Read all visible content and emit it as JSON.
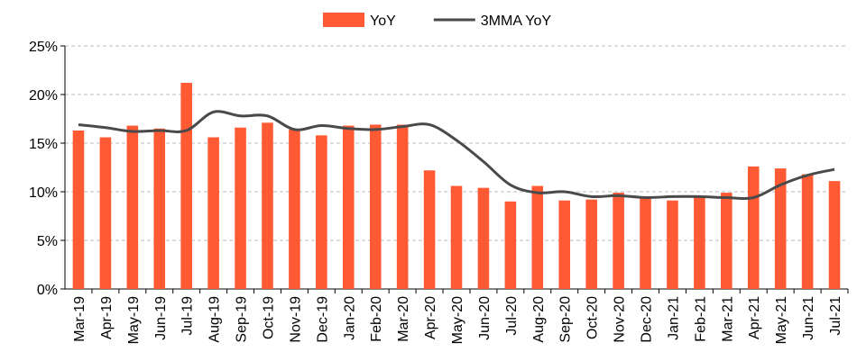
{
  "chart_data": {
    "type": "bar_line",
    "categories": [
      "Mar-19",
      "Apr-19",
      "May-19",
      "Jun-19",
      "Jul-19",
      "Aug-19",
      "Sep-19",
      "Oct-19",
      "Nov-19",
      "Dec-19",
      "Jan-20",
      "Feb-20",
      "Mar-20",
      "Apr-20",
      "May-20",
      "Jun-20",
      "Jul-20",
      "Aug-20",
      "Sep-20",
      "Oct-20",
      "Nov-20",
      "Dec-20",
      "Jan-21",
      "Feb-21",
      "Mar-21",
      "Apr-21",
      "May-21",
      "Jun-21",
      "Jul-21"
    ],
    "series": [
      {
        "name": "YoY",
        "type": "bar",
        "color": "#ff5a33",
        "values": [
          16.3,
          15.6,
          16.8,
          16.5,
          21.2,
          15.6,
          16.6,
          17.1,
          16.4,
          15.8,
          16.8,
          16.9,
          16.9,
          12.2,
          10.6,
          10.4,
          9.0,
          10.6,
          9.1,
          9.2,
          9.9,
          9.5,
          9.1,
          9.5,
          9.9,
          12.6,
          12.4,
          11.8,
          11.1
        ]
      },
      {
        "name": "3MMA YoY",
        "type": "line",
        "color": "#4a4a4a",
        "values": [
          16.9,
          16.6,
          16.2,
          16.3,
          16.3,
          18.2,
          17.8,
          17.8,
          16.4,
          16.8,
          16.5,
          16.4,
          16.7,
          16.9,
          15.3,
          13.1,
          10.7,
          9.9,
          10.0,
          9.5,
          9.6,
          9.4,
          9.5,
          9.5,
          9.4,
          9.4,
          10.7,
          11.7,
          12.3
        ]
      }
    ],
    "ylim": [
      0,
      25
    ],
    "yticks": [
      {
        "value": 0,
        "label": "0%"
      },
      {
        "value": 5,
        "label": "5%"
      },
      {
        "value": 10,
        "label": "10%"
      },
      {
        "value": 15,
        "label": "15%"
      },
      {
        "value": 20,
        "label": "20%"
      },
      {
        "value": 25,
        "label": "25%"
      }
    ],
    "grid": true,
    "legend": "top"
  }
}
